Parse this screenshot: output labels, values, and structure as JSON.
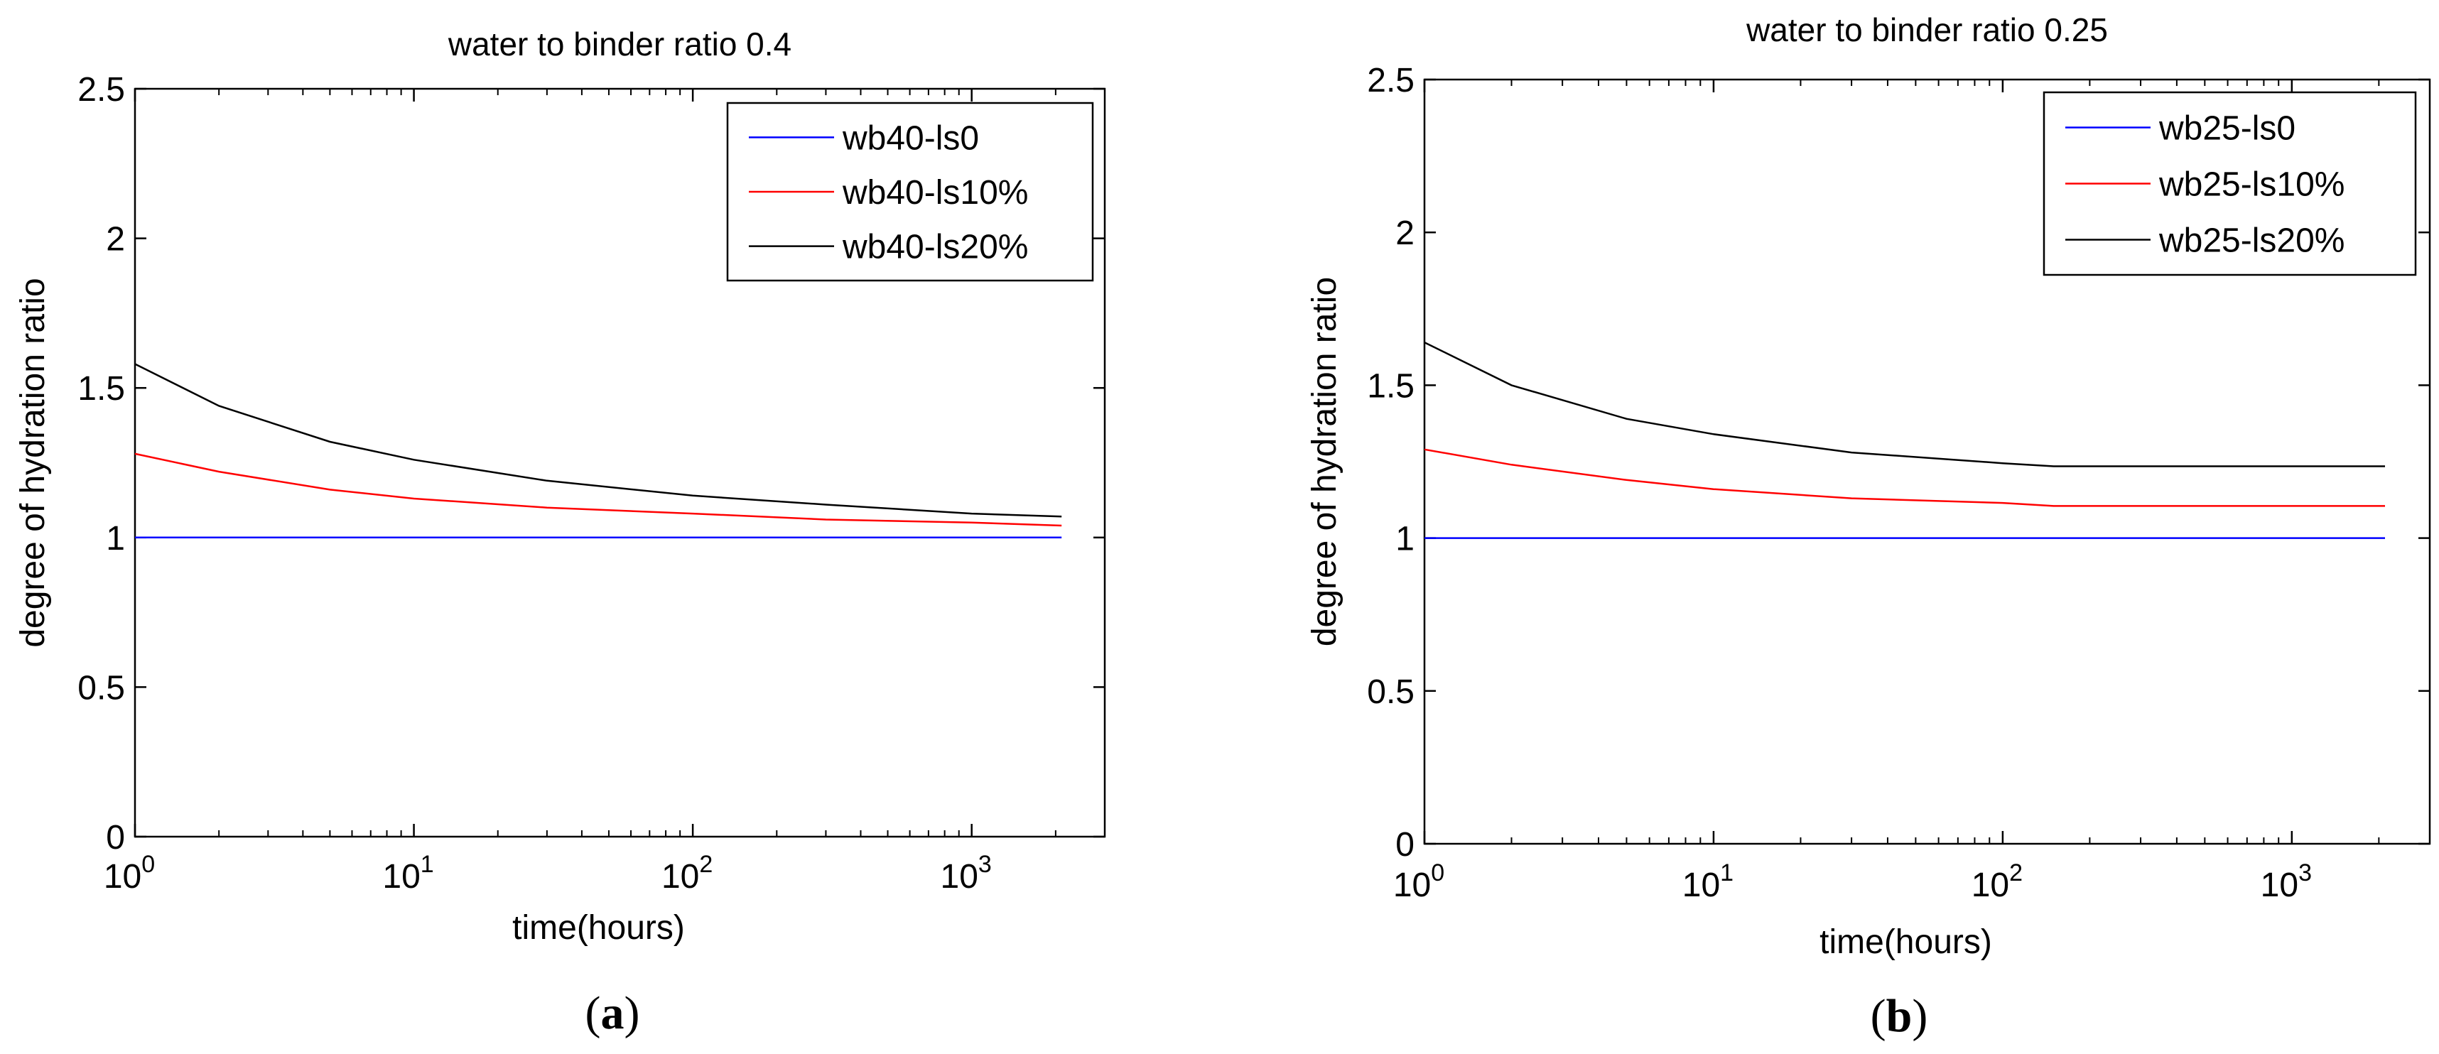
{
  "chart_data": [
    {
      "type": "line",
      "title": "water to binder ratio 0.4",
      "xlabel": "time(hours)",
      "ylabel": "degree of hydration ratio",
      "xscale": "log",
      "xlim": [
        1,
        3000
      ],
      "ylim": [
        0,
        2.5
      ],
      "xticks": [
        {
          "value": 1,
          "base": "10",
          "exp": "0"
        },
        {
          "value": 10,
          "base": "10",
          "exp": "1"
        },
        {
          "value": 100,
          "base": "10",
          "exp": "2"
        },
        {
          "value": 1000,
          "base": "10",
          "exp": "3"
        }
      ],
      "yticks": [
        {
          "value": 0,
          "label": "0"
        },
        {
          "value": 0.5,
          "label": "0.5"
        },
        {
          "value": 1,
          "label": "1"
        },
        {
          "value": 1.5,
          "label": "1.5"
        },
        {
          "value": 2,
          "label": "2"
        },
        {
          "value": 2.5,
          "label": "2.5"
        }
      ],
      "legend_position": "top-right",
      "caption": {
        "open": "(",
        "letter": "a",
        "close": ")"
      },
      "series": [
        {
          "name": "wb40-ls0",
          "color": "#0000ff",
          "points": [
            [
              1,
              1.0
            ],
            [
              2100,
              1.0
            ]
          ]
        },
        {
          "name": "wb40-ls10%",
          "color": "#ff0000",
          "points": [
            [
              1,
              1.28
            ],
            [
              2,
              1.22
            ],
            [
              5,
              1.16
            ],
            [
              10,
              1.13
            ],
            [
              30,
              1.1
            ],
            [
              100,
              1.08
            ],
            [
              300,
              1.06
            ],
            [
              1000,
              1.05
            ],
            [
              2100,
              1.04
            ]
          ]
        },
        {
          "name": "wb40-ls20%",
          "color": "#000000",
          "points": [
            [
              1,
              1.58
            ],
            [
              2,
              1.44
            ],
            [
              5,
              1.32
            ],
            [
              10,
              1.26
            ],
            [
              30,
              1.19
            ],
            [
              100,
              1.14
            ],
            [
              300,
              1.11
            ],
            [
              1000,
              1.08
            ],
            [
              2100,
              1.07
            ]
          ]
        }
      ]
    },
    {
      "type": "line",
      "title": "water to binder ratio 0.25",
      "xlabel": "time(hours)",
      "ylabel": "degree of hydration ratio",
      "xscale": "log",
      "xlim": [
        1,
        3000
      ],
      "ylim": [
        0,
        2.5
      ],
      "xticks": [
        {
          "value": 1,
          "base": "10",
          "exp": "0"
        },
        {
          "value": 10,
          "base": "10",
          "exp": "1"
        },
        {
          "value": 100,
          "base": "10",
          "exp": "2"
        },
        {
          "value": 1000,
          "base": "10",
          "exp": "3"
        }
      ],
      "yticks": [
        {
          "value": 0,
          "label": "0"
        },
        {
          "value": 0.5,
          "label": "0.5"
        },
        {
          "value": 1,
          "label": "1"
        },
        {
          "value": 1.5,
          "label": "1.5"
        },
        {
          "value": 2,
          "label": "2"
        },
        {
          "value": 2.5,
          "label": "2.5"
        }
      ],
      "legend_position": "top-right",
      "caption": {
        "open": "(",
        "letter": "b",
        "close": ")"
      },
      "series": [
        {
          "name": "wb25-ls0",
          "color": "#0000ff",
          "points": [
            [
              1,
              1.0
            ],
            [
              2100,
              1.0
            ]
          ]
        },
        {
          "name": "wb25-ls10%",
          "color": "#ff0000",
          "points": [
            [
              1,
              1.29
            ],
            [
              2,
              1.24
            ],
            [
              5,
              1.19
            ],
            [
              10,
              1.16
            ],
            [
              30,
              1.13
            ],
            [
              100,
              1.115
            ],
            [
              150,
              1.105
            ],
            [
              1000,
              1.105
            ],
            [
              2100,
              1.105
            ]
          ]
        },
        {
          "name": "wb25-ls20%",
          "color": "#000000",
          "points": [
            [
              1,
              1.64
            ],
            [
              2,
              1.5
            ],
            [
              5,
              1.39
            ],
            [
              10,
              1.34
            ],
            [
              30,
              1.28
            ],
            [
              100,
              1.245
            ],
            [
              150,
              1.235
            ],
            [
              1000,
              1.235
            ],
            [
              2100,
              1.235
            ]
          ]
        }
      ]
    }
  ]
}
